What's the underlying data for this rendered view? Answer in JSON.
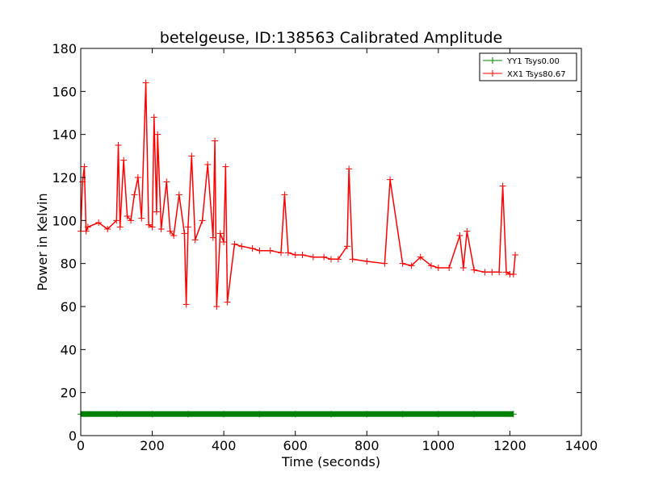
{
  "chart_data": {
    "type": "line",
    "title": "betelgeuse, ID:138563 Calibrated Amplitude",
    "xlabel": "Time (seconds)",
    "ylabel": "Power in Kelvin",
    "xlim": [
      0,
      1400
    ],
    "ylim": [
      0,
      180
    ],
    "xticks": [
      0,
      200,
      400,
      600,
      800,
      1000,
      1200,
      1400
    ],
    "yticks": [
      0,
      20,
      40,
      60,
      80,
      100,
      120,
      140,
      160,
      180
    ],
    "grid": false,
    "legend_position": "top-right",
    "series": [
      {
        "name": "YY1 Tsys0.00",
        "color": "#008000",
        "marker": "+",
        "x": [
          0,
          100,
          200,
          300,
          400,
          500,
          600,
          700,
          800,
          900,
          1000,
          1100,
          1210
        ],
        "y": [
          10,
          10,
          10,
          10,
          10,
          10,
          10,
          10,
          10,
          10,
          10,
          10,
          10
        ]
      },
      {
        "name": "XX1 Tsys80.67",
        "color": "#ff0000",
        "marker": "+",
        "x": [
          0,
          5,
          10,
          15,
          20,
          50,
          75,
          100,
          105,
          110,
          120,
          130,
          140,
          150,
          160,
          170,
          182,
          190,
          200,
          205,
          212,
          215,
          225,
          240,
          250,
          260,
          275,
          290,
          295,
          300,
          310,
          320,
          340,
          355,
          370,
          375,
          380,
          390,
          400,
          405,
          410,
          430,
          450,
          480,
          500,
          530,
          560,
          570,
          580,
          600,
          620,
          650,
          680,
          700,
          720,
          745,
          750,
          760,
          800,
          850,
          865,
          900,
          925,
          950,
          980,
          1000,
          1030,
          1060,
          1070,
          1080,
          1100,
          1130,
          1150,
          1170,
          1180,
          1190,
          1200,
          1210,
          1215
        ],
        "y": [
          95,
          118,
          125,
          95,
          97,
          99,
          96,
          100,
          135,
          97,
          128,
          102,
          100,
          112,
          120,
          101,
          164,
          98,
          97,
          148,
          104,
          140,
          96,
          118,
          95,
          93,
          112,
          94,
          61,
          97,
          130,
          91,
          100,
          126,
          92,
          137,
          60,
          94,
          90,
          125,
          62,
          89,
          88,
          87,
          86,
          86,
          85,
          112,
          85,
          84,
          84,
          83,
          83,
          82,
          82,
          88,
          124,
          82,
          81,
          80,
          119,
          80,
          79,
          83,
          79,
          78,
          78,
          93,
          78,
          95,
          77,
          76,
          76,
          76,
          116,
          76,
          75,
          75,
          84
        ]
      }
    ]
  }
}
